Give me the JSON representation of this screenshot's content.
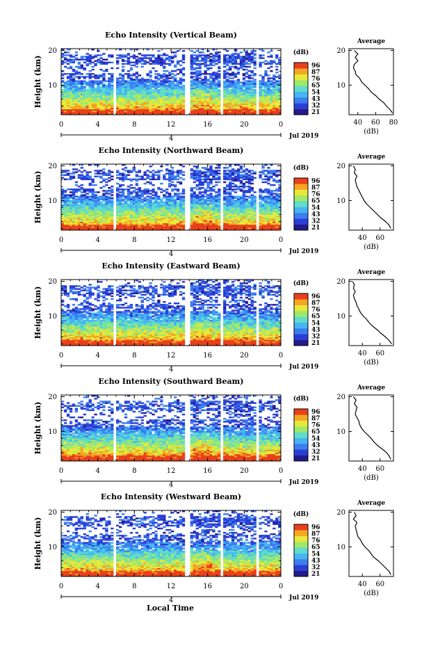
{
  "figure": {
    "xlabel": "Local Time",
    "date_label": "Jul 2019",
    "date_day": "4",
    "colorbar_label": "(dB)",
    "profile_title": "Average",
    "profile_xlabel": "(dB)"
  },
  "chart_data": [
    {
      "type": "heatmap",
      "title": "Echo Intensity (Vertical Beam)",
      "xlabel": "Local Time",
      "ylabel": "Height (km)",
      "x_ticks": [
        "0",
        "4",
        "8",
        "12",
        "16",
        "20",
        "0"
      ],
      "xlim": [
        0,
        24
      ],
      "y_ticks": [
        "10",
        "20"
      ],
      "ylim": [
        1.5,
        20.5
      ],
      "colorbar_ticks": [
        "96",
        "87",
        "76",
        "65",
        "54",
        "43",
        "32",
        "21"
      ],
      "colorbar_range": [
        21,
        96
      ],
      "data_gaps_hours": [
        [
          5.8,
          6.0
        ],
        [
          13.5,
          14.1
        ],
        [
          17.5,
          17.8
        ],
        [
          21.3,
          21.7
        ]
      ],
      "average_profile": {
        "title": "Average",
        "xlabel": "(dB)",
        "x_ticks": [
          "40",
          "60",
          "80"
        ],
        "xlim": [
          30,
          80
        ],
        "y_ticks": [
          "10",
          "20"
        ],
        "ylim": [
          1.5,
          20.5
        ],
        "points": [
          [
            20,
            36
          ],
          [
            19,
            40
          ],
          [
            18,
            37
          ],
          [
            17,
            40
          ],
          [
            16,
            36
          ],
          [
            15,
            35
          ],
          [
            14,
            37
          ],
          [
            13,
            38
          ],
          [
            12,
            42
          ],
          [
            11,
            44
          ],
          [
            10,
            48
          ],
          [
            9,
            52
          ],
          [
            8,
            55
          ],
          [
            7,
            60
          ],
          [
            6,
            64
          ],
          [
            5,
            69
          ],
          [
            4,
            72
          ],
          [
            3,
            76
          ],
          [
            2,
            79
          ]
        ]
      }
    },
    {
      "type": "heatmap",
      "title": "Echo Intensity (Northward Beam)",
      "xlabel": "Local Time",
      "ylabel": "Height (km)",
      "x_ticks": [
        "0",
        "4",
        "8",
        "12",
        "16",
        "20",
        "0"
      ],
      "xlim": [
        0,
        24
      ],
      "y_ticks": [
        "10",
        "20"
      ],
      "ylim": [
        1.5,
        20.5
      ],
      "colorbar_ticks": [
        "96",
        "87",
        "76",
        "65",
        "54",
        "43",
        "32",
        "21"
      ],
      "colorbar_range": [
        21,
        96
      ],
      "data_gaps_hours": [
        [
          5.8,
          6.0
        ],
        [
          13.5,
          14.1
        ],
        [
          17.5,
          17.8
        ],
        [
          21.3,
          21.7
        ]
      ],
      "average_profile": {
        "title": "Average",
        "xlabel": "(dB)",
        "x_ticks": [
          "40",
          "60"
        ],
        "xlim": [
          25,
          75
        ],
        "y_ticks": [
          "10",
          "20"
        ],
        "ylim": [
          1.5,
          20.5
        ],
        "points": [
          [
            20,
            30
          ],
          [
            19,
            32
          ],
          [
            18,
            31
          ],
          [
            17,
            34
          ],
          [
            16,
            32
          ],
          [
            15,
            33
          ],
          [
            14,
            34
          ],
          [
            13,
            36
          ],
          [
            12,
            38
          ],
          [
            11,
            40
          ],
          [
            10,
            42
          ],
          [
            9,
            45
          ],
          [
            8,
            49
          ],
          [
            7,
            53
          ],
          [
            6,
            57
          ],
          [
            5,
            61
          ],
          [
            4,
            66
          ],
          [
            3,
            70
          ],
          [
            2,
            72
          ]
        ]
      }
    },
    {
      "type": "heatmap",
      "title": "Echo Intensity (Eastward Beam)",
      "xlabel": "Local Time",
      "ylabel": "Height (km)",
      "x_ticks": [
        "0",
        "4",
        "8",
        "12",
        "16",
        "20",
        "0"
      ],
      "xlim": [
        0,
        24
      ],
      "y_ticks": [
        "10",
        "20"
      ],
      "ylim": [
        1.5,
        20.5
      ],
      "colorbar_ticks": [
        "96",
        "87",
        "76",
        "65",
        "54",
        "43",
        "32",
        "21"
      ],
      "colorbar_range": [
        21,
        96
      ],
      "data_gaps_hours": [
        [
          5.8,
          6.0
        ],
        [
          13.5,
          14.1
        ],
        [
          17.5,
          17.8
        ],
        [
          21.3,
          21.7
        ]
      ],
      "average_profile": {
        "title": "Average",
        "xlabel": "(dB)",
        "x_ticks": [
          "40",
          "60"
        ],
        "xlim": [
          25,
          75
        ],
        "y_ticks": [
          "10",
          "20"
        ],
        "ylim": [
          1.5,
          20.5
        ],
        "points": [
          [
            20,
            29
          ],
          [
            19,
            31
          ],
          [
            18,
            30
          ],
          [
            17,
            32
          ],
          [
            16,
            30
          ],
          [
            15,
            31
          ],
          [
            14,
            33
          ],
          [
            13,
            34
          ],
          [
            12,
            36
          ],
          [
            11,
            38
          ],
          [
            10,
            41
          ],
          [
            9,
            45
          ],
          [
            8,
            48
          ],
          [
            7,
            52
          ],
          [
            6,
            57
          ],
          [
            5,
            61
          ],
          [
            4,
            66
          ],
          [
            3,
            70
          ],
          [
            2,
            73
          ]
        ]
      }
    },
    {
      "type": "heatmap",
      "title": "Echo Intensity (Southward Beam)",
      "xlabel": "Local Time",
      "ylabel": "Height (km)",
      "x_ticks": [
        "0",
        "4",
        "8",
        "12",
        "16",
        "20",
        "0"
      ],
      "xlim": [
        0,
        24
      ],
      "y_ticks": [
        "10",
        "20"
      ],
      "ylim": [
        1.5,
        20.5
      ],
      "colorbar_ticks": [
        "96",
        "87",
        "76",
        "65",
        "54",
        "43",
        "32",
        "21"
      ],
      "colorbar_range": [
        21,
        96
      ],
      "data_gaps_hours": [
        [
          5.8,
          6.0
        ],
        [
          13.5,
          14.1
        ],
        [
          17.5,
          17.8
        ],
        [
          21.3,
          21.7
        ]
      ],
      "average_profile": {
        "title": "Average",
        "xlabel": "(dB)",
        "x_ticks": [
          "40",
          "60"
        ],
        "xlim": [
          25,
          75
        ],
        "y_ticks": [
          "10",
          "20"
        ],
        "ylim": [
          1.5,
          20.5
        ],
        "points": [
          [
            20,
            30
          ],
          [
            19,
            33
          ],
          [
            18,
            31
          ],
          [
            17,
            34
          ],
          [
            16,
            33
          ],
          [
            15,
            32
          ],
          [
            14,
            34
          ],
          [
            13,
            36
          ],
          [
            12,
            37
          ],
          [
            11,
            39
          ],
          [
            10,
            42
          ],
          [
            9,
            46
          ],
          [
            8,
            50
          ],
          [
            7,
            53
          ],
          [
            6,
            57
          ],
          [
            5,
            62
          ],
          [
            4,
            67
          ],
          [
            3,
            70
          ],
          [
            2,
            72
          ]
        ]
      }
    },
    {
      "type": "heatmap",
      "title": "Echo Intensity (Westward Beam)",
      "xlabel": "Local Time",
      "ylabel": "Height (km)",
      "x_ticks": [
        "0",
        "4",
        "8",
        "12",
        "16",
        "20",
        "0"
      ],
      "xlim": [
        0,
        24
      ],
      "y_ticks": [
        "10",
        "20"
      ],
      "ylim": [
        1.5,
        20.5
      ],
      "colorbar_ticks": [
        "96",
        "87",
        "76",
        "65",
        "54",
        "43",
        "32",
        "21"
      ],
      "colorbar_range": [
        21,
        96
      ],
      "data_gaps_hours": [
        [
          5.8,
          6.0
        ],
        [
          13.5,
          14.1
        ],
        [
          17.5,
          17.8
        ],
        [
          21.3,
          21.7
        ]
      ],
      "average_profile": {
        "title": "Average",
        "xlabel": "(dB)",
        "x_ticks": [
          "40",
          "60"
        ],
        "xlim": [
          25,
          75
        ],
        "y_ticks": [
          "10",
          "20"
        ],
        "ylim": [
          1.5,
          20.5
        ],
        "points": [
          [
            20,
            31
          ],
          [
            19,
            33
          ],
          [
            18,
            30
          ],
          [
            17,
            34
          ],
          [
            16,
            32
          ],
          [
            15,
            33
          ],
          [
            14,
            34
          ],
          [
            13,
            35
          ],
          [
            12,
            38
          ],
          [
            11,
            40
          ],
          [
            10,
            43
          ],
          [
            9,
            47
          ],
          [
            8,
            50
          ],
          [
            7,
            53
          ],
          [
            6,
            58
          ],
          [
            5,
            62
          ],
          [
            4,
            66
          ],
          [
            3,
            70
          ],
          [
            2,
            72
          ]
        ]
      }
    }
  ],
  "colors": {
    "colormap": [
      "#241a8c",
      "#2b3fd6",
      "#3d7df0",
      "#45b6f2",
      "#5fdccb",
      "#9ee86a",
      "#e8e83a",
      "#f5a623",
      "#e8401c"
    ]
  }
}
